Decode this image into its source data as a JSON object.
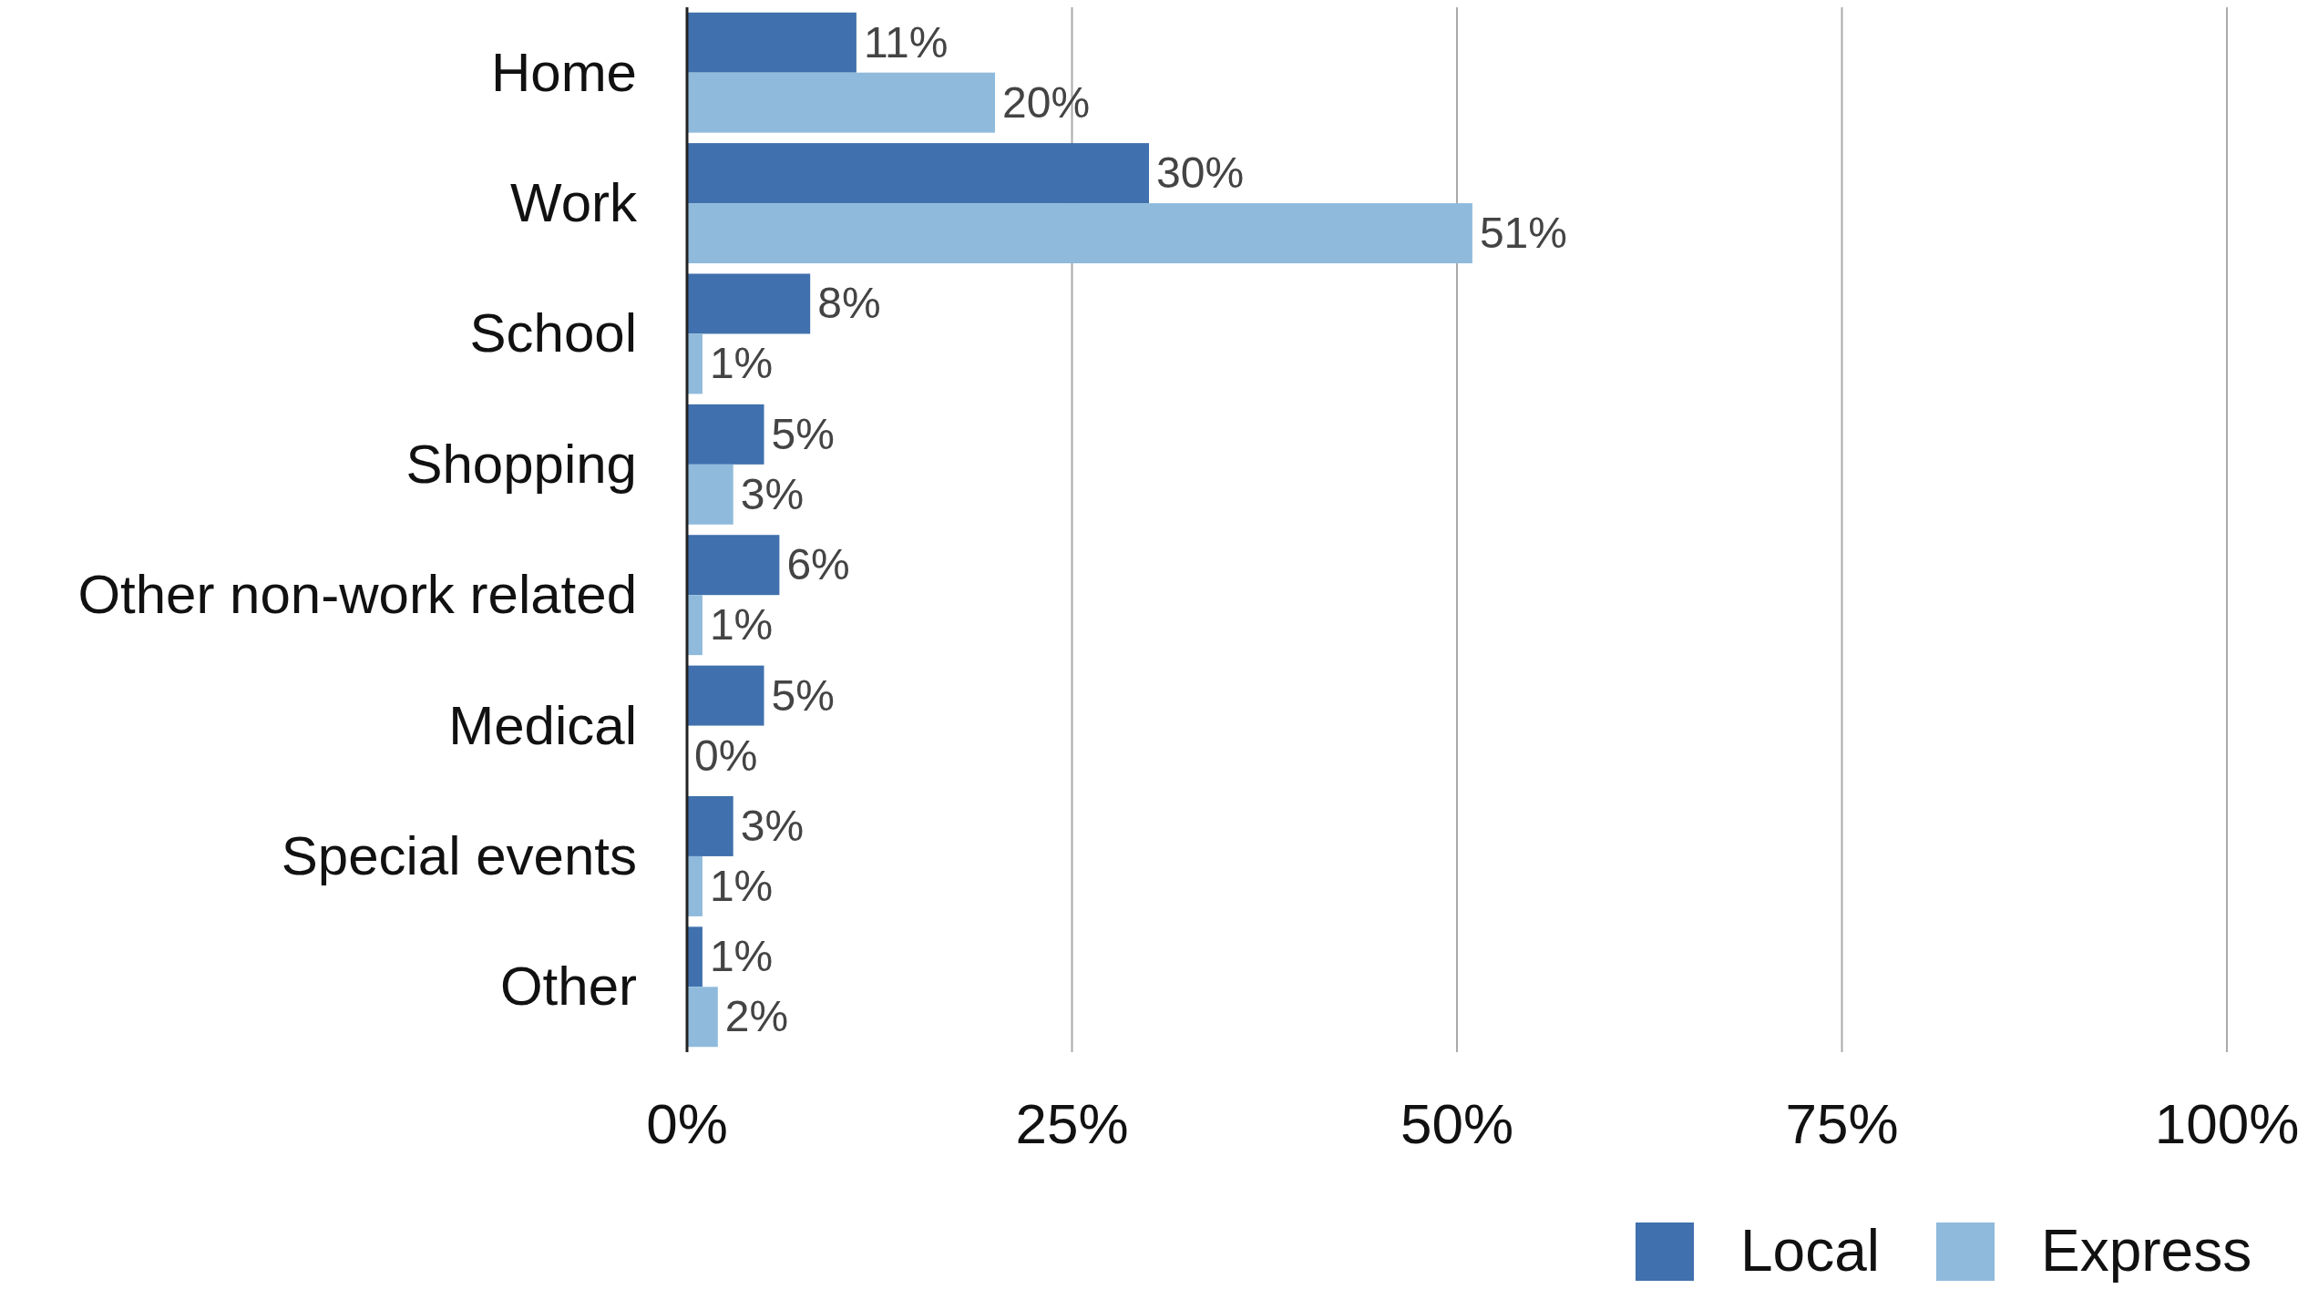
{
  "chart_data": {
    "type": "bar",
    "orientation": "horizontal",
    "categories": [
      "Home",
      "Work",
      "School",
      "Shopping",
      "Other non-work related",
      "Medical",
      "Special events",
      "Other"
    ],
    "series": [
      {
        "name": "Local",
        "color": "#4070ad",
        "values": [
          11,
          30,
          8,
          5,
          6,
          5,
          3,
          1
        ],
        "value_labels": [
          "11%",
          "30%",
          "8%",
          "5%",
          "6%",
          "5%",
          "3%",
          "1%"
        ]
      },
      {
        "name": "Express",
        "color": "#8fbadc",
        "values": [
          20,
          51,
          1,
          3,
          1,
          0,
          1,
          2
        ],
        "value_labels": [
          "20%",
          "51%",
          "1%",
          "3%",
          "1%",
          "0%",
          "1%",
          "2%"
        ]
      }
    ],
    "xlim": [
      0,
      100
    ],
    "xticks": [
      {
        "value": 0,
        "label": "0%"
      },
      {
        "value": 25,
        "label": "25%"
      },
      {
        "value": 50,
        "label": "50%"
      },
      {
        "value": 75,
        "label": "75%"
      },
      {
        "value": 100,
        "label": "100%"
      }
    ],
    "grid": "x",
    "legend": "bottom right"
  }
}
